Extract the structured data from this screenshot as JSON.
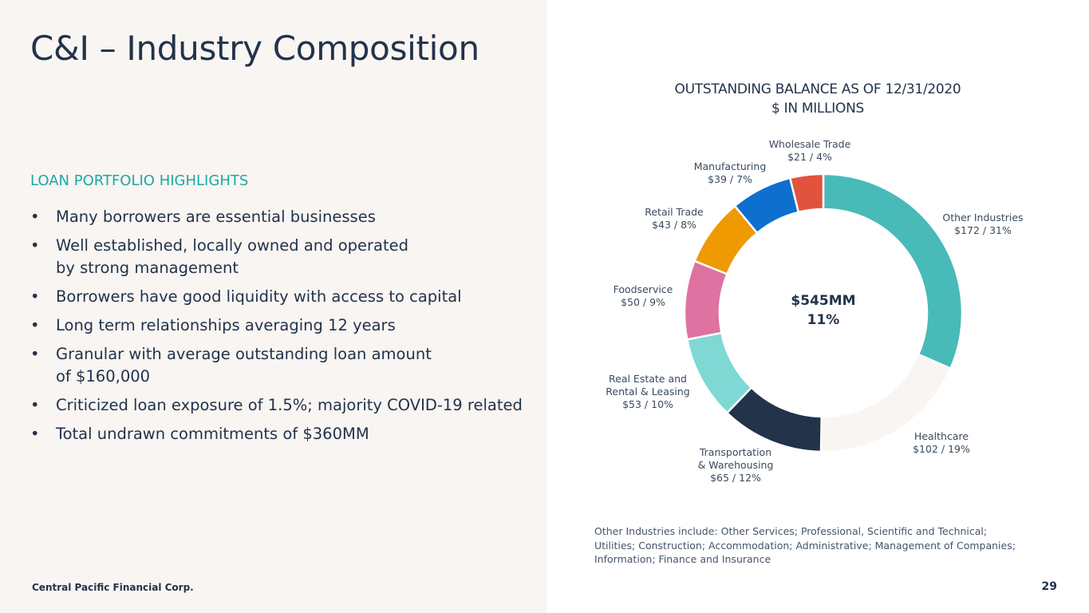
{
  "page": {
    "title": "C&I – Industry Composition",
    "page_number": "29",
    "company": "Central Pacific Financial Corp."
  },
  "highlights": {
    "heading": "LOAN PORTFOLIO HIGHLIGHTS",
    "bullet_symbol": "•",
    "items": [
      "Many borrowers are essential businesses",
      "Well established, locally owned and operated\nby strong management",
      "Borrowers have good liquidity with access to capital",
      "Long term relationships averaging 12 years",
      "Granular with average outstanding loan amount\nof $160,000",
      "Criticized loan exposure of 1.5%; majority COVID-19 related",
      "Total undrawn commitments of $360MM"
    ]
  },
  "chart_data": {
    "type": "pie",
    "donut": true,
    "title_lines": [
      "OUTSTANDING BALANCE AS OF 12/31/2020",
      "$ IN MILLIONS"
    ],
    "center_text": [
      "$545MM",
      "11%"
    ],
    "slices": [
      {
        "name": "Other Industries",
        "value": 172,
        "percent": 31,
        "label_lines": [
          "Other Industries",
          "$172 / 31%"
        ],
        "color": "#48bab7"
      },
      {
        "name": "Healthcare",
        "value": 102,
        "percent": 19,
        "label_lines": [
          "Healthcare",
          "$102 / 19%"
        ],
        "color": "#f8f5f2"
      },
      {
        "name": "Transportation & Warehousing",
        "value": 65,
        "percent": 12,
        "label_lines": [
          "Transportation",
          "& Warehousing",
          "$65 / 12%"
        ],
        "color": "#22334a"
      },
      {
        "name": "Real Estate and Rental & Leasing",
        "value": 53,
        "percent": 10,
        "label_lines": [
          "Real Estate and",
          "Rental & Leasing",
          "$53 / 10%"
        ],
        "color": "#7fd8d4"
      },
      {
        "name": "Foodservice",
        "value": 50,
        "percent": 9,
        "label_lines": [
          "Foodservice",
          "$50 / 9%"
        ],
        "color": "#de72a1"
      },
      {
        "name": "Retail Trade",
        "value": 43,
        "percent": 8,
        "label_lines": [
          "Retail Trade",
          "$43 / 8%"
        ],
        "color": "#ee9a00"
      },
      {
        "name": "Manufacturing",
        "value": 39,
        "percent": 7,
        "label_lines": [
          "Manufacturing",
          "$39 / 7%"
        ],
        "color": "#0e6fcf"
      },
      {
        "name": "Wholesale Trade",
        "value": 21,
        "percent": 4,
        "label_lines": [
          "Wholesale Trade",
          "$21 / 4%"
        ],
        "color": "#e2533e"
      }
    ],
    "footnote": "Other Industries include: Other Services; Professional, Scientific and Technical; Utilities; Construction; Accommodation;  Administrative; Management of Companies; Information; Finance and Insurance"
  }
}
